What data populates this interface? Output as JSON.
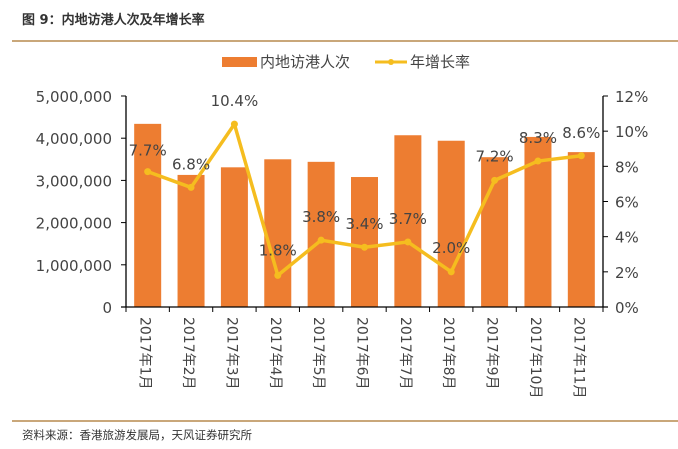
{
  "header": {
    "title": "图 9：内地访港人次及年增长率"
  },
  "footer": {
    "source": "资料来源：香港旅游发展局，天风证券研究所"
  },
  "chart_data": {
    "type": "bar+line",
    "categories": [
      "2017年1月",
      "2017年2月",
      "2017年3月",
      "2017年4月",
      "2017年5月",
      "2017年6月",
      "2017年7月",
      "2017年8月",
      "2017年9月",
      "2017年10月",
      "2017年11月"
    ],
    "series": [
      {
        "name": "内地访港人次",
        "type": "bar",
        "axis": "left",
        "color": "#ed7d31",
        "values": [
          4340000,
          3130000,
          3310000,
          3500000,
          3440000,
          3080000,
          4070000,
          3940000,
          3550000,
          4030000,
          3670000
        ]
      },
      {
        "name": "年增长率",
        "type": "line",
        "axis": "right",
        "color": "#f5bd1f",
        "values": [
          7.7,
          6.8,
          10.4,
          1.8,
          3.8,
          3.4,
          3.7,
          2.0,
          7.2,
          8.3,
          8.6
        ],
        "labels": [
          "7.7%",
          "6.8%",
          "10.4%",
          "1.8%",
          "3.8%",
          "3.4%",
          "3.7%",
          "2.0%",
          "7.2%",
          "8.3%",
          "8.6%"
        ]
      }
    ],
    "y_left": {
      "range": [
        0,
        5000000
      ],
      "ticks": [
        "0",
        "1,000,000",
        "2,000,000",
        "3,000,000",
        "4,000,000",
        "5,000,000"
      ]
    },
    "y_right": {
      "range": [
        0,
        12
      ],
      "ticks": [
        "0%",
        "2%",
        "4%",
        "6%",
        "8%",
        "10%",
        "12%"
      ]
    },
    "legend": "top",
    "grid": false
  }
}
